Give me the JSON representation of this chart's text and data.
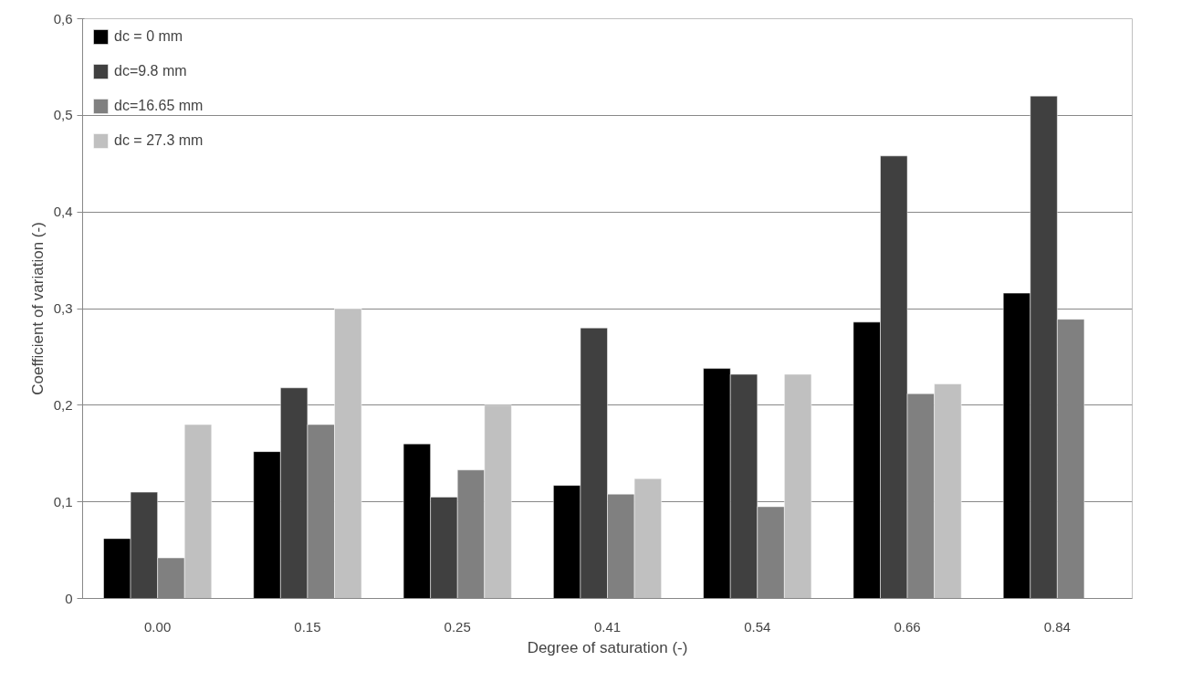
{
  "chart_data": {
    "type": "bar",
    "xlabel": "Degree of saturation (-)",
    "ylabel": "Coefficient of variation (-)",
    "categories": [
      "0.00",
      "0.15",
      "0.25",
      "0.41",
      "0.54",
      "0.66",
      "0.84"
    ],
    "series": [
      {
        "name": "dc = 0 mm",
        "color": "#000000",
        "values": [
          0.062,
          0.152,
          0.16,
          0.117,
          0.238,
          0.286,
          0.316
        ]
      },
      {
        "name": "dc=9.8 mm",
        "color": "#404040",
        "values": [
          0.11,
          0.218,
          0.105,
          0.28,
          0.232,
          0.458,
          0.52
        ]
      },
      {
        "name": "dc=16.65 mm",
        "color": "#808080",
        "values": [
          0.042,
          0.18,
          0.133,
          0.108,
          0.095,
          0.212,
          0.289
        ]
      },
      {
        "name": "dc = 27.3 mm",
        "color": "#c0c0c0",
        "values": [
          0.18,
          0.3,
          0.2,
          0.124,
          0.232,
          0.222,
          null
        ]
      }
    ],
    "ylim": [
      0,
      0.6
    ],
    "yticks": [
      0,
      {
        "value": 0.1,
        "label": "0,1"
      },
      {
        "value": 0.2,
        "label": "0,2"
      },
      {
        "value": 0.3,
        "label": "0,3"
      },
      {
        "value": 0.4,
        "label": "0,4"
      },
      {
        "value": 0.5,
        "label": "0,5"
      },
      {
        "value": 0.6,
        "label": "0,6"
      }
    ],
    "grid": "y",
    "legend": "top left"
  }
}
